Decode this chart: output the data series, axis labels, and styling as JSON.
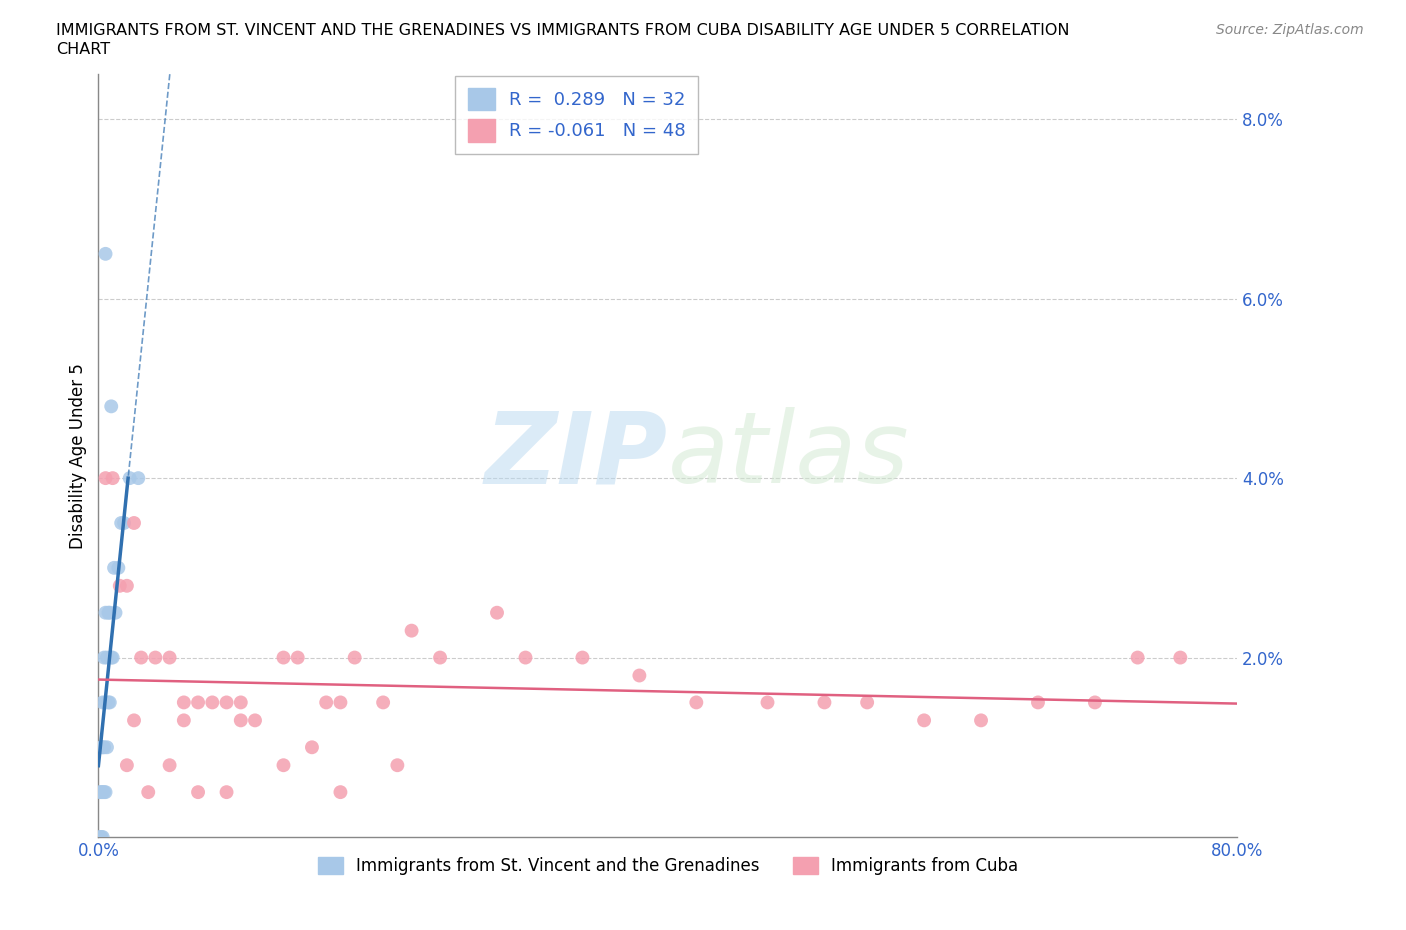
{
  "title_line1": "IMMIGRANTS FROM ST. VINCENT AND THE GRENADINES VS IMMIGRANTS FROM CUBA DISABILITY AGE UNDER 5 CORRELATION",
  "title_line2": "CHART",
  "source_text": "Source: ZipAtlas.com",
  "ylabel": "Disability Age Under 5",
  "r_blue": 0.289,
  "n_blue": 32,
  "r_pink": -0.061,
  "n_pink": 48,
  "blue_color": "#a8c8e8",
  "pink_color": "#f4a0b0",
  "blue_line_color": "#3070b0",
  "pink_line_color": "#e06080",
  "legend_label_blue": "Immigrants from St. Vincent and the Grenadines",
  "legend_label_pink": "Immigrants from Cuba",
  "xlim": [
    0.0,
    0.8
  ],
  "ylim": [
    0.0,
    0.085
  ],
  "yticks": [
    0.0,
    0.02,
    0.04,
    0.06,
    0.08
  ],
  "ytick_labels": [
    "",
    "2.0%",
    "4.0%",
    "6.0%",
    "8.0%"
  ],
  "xtick_labels": [
    "0.0%",
    "",
    "",
    "",
    "",
    "",
    "",
    "",
    "80.0%"
  ],
  "watermark_zip": "ZIP",
  "watermark_atlas": "atlas",
  "blue_scatter_x": [
    0.001,
    0.001,
    0.002,
    0.002,
    0.002,
    0.003,
    0.003,
    0.003,
    0.003,
    0.004,
    0.004,
    0.004,
    0.005,
    0.005,
    0.005,
    0.006,
    0.006,
    0.007,
    0.007,
    0.008,
    0.008,
    0.009,
    0.01,
    0.011,
    0.012,
    0.014,
    0.016,
    0.018,
    0.022,
    0.028,
    0.005,
    0.009
  ],
  "blue_scatter_y": [
    0.0,
    0.005,
    0.0,
    0.005,
    0.01,
    0.0,
    0.005,
    0.01,
    0.015,
    0.005,
    0.01,
    0.02,
    0.005,
    0.015,
    0.025,
    0.01,
    0.02,
    0.015,
    0.025,
    0.015,
    0.025,
    0.02,
    0.02,
    0.03,
    0.025,
    0.03,
    0.035,
    0.035,
    0.04,
    0.04,
    0.065,
    0.048
  ],
  "pink_scatter_x": [
    0.005,
    0.01,
    0.015,
    0.02,
    0.025,
    0.03,
    0.04,
    0.05,
    0.06,
    0.07,
    0.08,
    0.09,
    0.1,
    0.11,
    0.13,
    0.14,
    0.16,
    0.17,
    0.18,
    0.2,
    0.22,
    0.24,
    0.28,
    0.3,
    0.34,
    0.38,
    0.42,
    0.47,
    0.51,
    0.54,
    0.58,
    0.62,
    0.66,
    0.7,
    0.73,
    0.76,
    0.02,
    0.035,
    0.05,
    0.07,
    0.09,
    0.13,
    0.17,
    0.21,
    0.025,
    0.06,
    0.1,
    0.15
  ],
  "pink_scatter_y": [
    0.04,
    0.04,
    0.028,
    0.028,
    0.035,
    0.02,
    0.02,
    0.02,
    0.015,
    0.015,
    0.015,
    0.015,
    0.015,
    0.013,
    0.02,
    0.02,
    0.015,
    0.015,
    0.02,
    0.015,
    0.023,
    0.02,
    0.025,
    0.02,
    0.02,
    0.018,
    0.015,
    0.015,
    0.015,
    0.015,
    0.013,
    0.013,
    0.015,
    0.015,
    0.02,
    0.02,
    0.008,
    0.005,
    0.008,
    0.005,
    0.005,
    0.008,
    0.005,
    0.008,
    0.013,
    0.013,
    0.013,
    0.01
  ]
}
